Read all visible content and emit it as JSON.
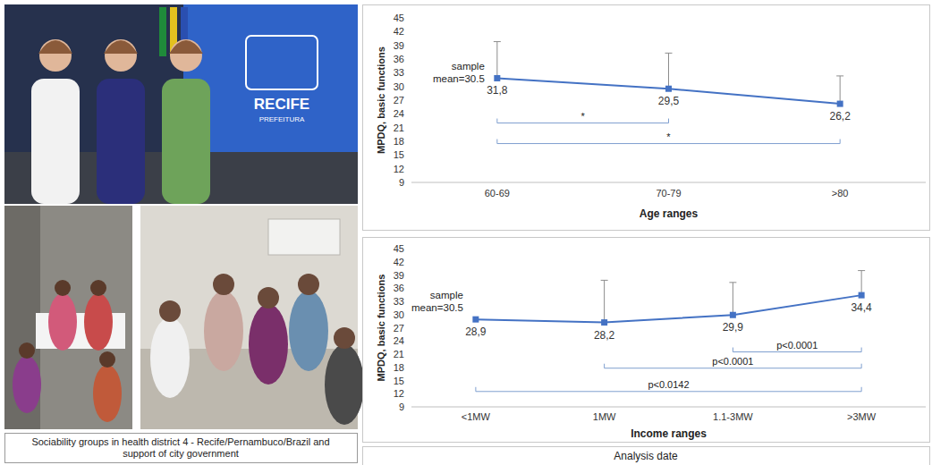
{
  "photo_panel": {
    "banner": [
      "RECIFE",
      "PREFEITURA"
    ],
    "caption": "Sociability groups in health district 4 - Recife/Pernambuco/Brazil and support of city government"
  },
  "chart_data": [
    {
      "type": "line",
      "categories": [
        "60-69",
        "70-79",
        ">80"
      ],
      "values": [
        31.8,
        29.5,
        26.2
      ],
      "value_labels": [
        "31,8",
        "29,5",
        "26,2"
      ],
      "errors": [
        8.0,
        7.8,
        6.1
      ],
      "data_labels": true,
      "color": "#4472c4",
      "marker": "square",
      "x_label": "Age ranges",
      "y_label": "MPDQ, basic functions",
      "ylim": [
        9,
        45
      ],
      "yticks": [
        9,
        12,
        15,
        18,
        21,
        24,
        27,
        30,
        33,
        36,
        39,
        42,
        45
      ],
      "grid": false,
      "annotations": [
        {
          "text": "sample mean=30.5",
          "y": 33
        }
      ],
      "brackets": [
        {
          "from": "60-69",
          "to": "70-79",
          "label": "*",
          "y": 22
        },
        {
          "from": "60-69",
          "to": ">80",
          "label": "*",
          "y": 17.5
        }
      ]
    },
    {
      "type": "line",
      "categories": [
        "<1MW",
        "1MW",
        "1.1-3MW",
        ">3MW"
      ],
      "values": [
        28.9,
        28.2,
        29.9,
        34.4
      ],
      "value_labels": [
        "28,9",
        "28,2",
        "29,9",
        "34,4"
      ],
      "errors": [
        null,
        9.6,
        7.4,
        5.6
      ],
      "data_labels": true,
      "color": "#4472c4",
      "marker": "square",
      "x_label": "Income ranges",
      "y_label": "MPDQ, basic functions",
      "ylim": [
        9,
        45
      ],
      "yticks": [
        9,
        12,
        15,
        18,
        21,
        24,
        27,
        30,
        33,
        36,
        39,
        42,
        45
      ],
      "grid": false,
      "annotations": [
        {
          "text": "sample mean=30.5",
          "y": 33
        }
      ],
      "brackets": [
        {
          "from": "1.1-3MW",
          "to": ">3MW",
          "label": "p<0.0001",
          "y": 21.5
        },
        {
          "from": "1MW",
          "to": ">3MW",
          "label": "p<0.0001",
          "y": 17.8
        },
        {
          "from": "<1MW",
          "to": ">3MW",
          "label": "p<0.0142",
          "y": 12.5
        }
      ]
    }
  ],
  "footer": "Analysis date"
}
